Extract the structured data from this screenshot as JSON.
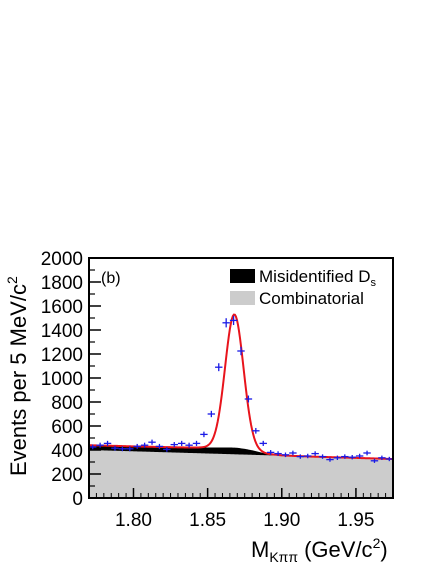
{
  "chart_data": {
    "type": "histogram-fit",
    "panel_label": "(b)",
    "xlabel": {
      "main": "M",
      "sub": "Kππ",
      "unit_pre": " (GeV/c",
      "unit_sup": "2",
      "unit_post": ")"
    },
    "ylabel": {
      "main": "Events per 5 MeV/c",
      "sup": "2"
    },
    "xlim": [
      1.77,
      1.975
    ],
    "ylim": [
      0,
      2000
    ],
    "xticks": [
      1.8,
      1.85,
      1.9,
      1.95
    ],
    "xtick_labels": [
      "1.80",
      "1.85",
      "1.90",
      "1.95"
    ],
    "yticks": [
      0,
      200,
      400,
      600,
      800,
      1000,
      1200,
      1400,
      1600,
      1800,
      2000
    ],
    "ytick_labels": [
      "0",
      "200",
      "400",
      "600",
      "800",
      "1000",
      "1200",
      "1400",
      "1600",
      "1800",
      "2000"
    ],
    "legend": {
      "placement": "top-right",
      "entries": [
        {
          "label_main": "Misidentified D",
          "label_sub": "s",
          "color": "#000000"
        },
        {
          "label_main": "Combinatorial",
          "label_sub": "",
          "color": "#cccccc"
        }
      ]
    },
    "colors": {
      "fit": "#e8141c",
      "data": "#1a1ae6",
      "misid": "#000000",
      "combinatorial": "#cccccc"
    },
    "bin_width": 0.005,
    "data_points": {
      "x": [
        1.7725,
        1.7775,
        1.7825,
        1.7875,
        1.7925,
        1.7975,
        1.8025,
        1.8075,
        1.8125,
        1.8175,
        1.8225,
        1.8275,
        1.8325,
        1.8375,
        1.8425,
        1.8475,
        1.8525,
        1.8575,
        1.8625,
        1.8675,
        1.8725,
        1.8775,
        1.8825,
        1.8875,
        1.8925,
        1.8975,
        1.9025,
        1.9075,
        1.9125,
        1.9175,
        1.9225,
        1.9275,
        1.9325,
        1.9375,
        1.9425,
        1.9475,
        1.9525,
        1.9575,
        1.9625,
        1.9675,
        1.9725
      ],
      "y": [
        425,
        440,
        455,
        415,
        410,
        410,
        430,
        440,
        465,
        430,
        405,
        445,
        455,
        440,
        455,
        530,
        700,
        1090,
        1460,
        1480,
        1225,
        825,
        560,
        455,
        380,
        370,
        360,
        375,
        345,
        350,
        370,
        345,
        320,
        335,
        345,
        340,
        350,
        375,
        310,
        335,
        325
      ]
    },
    "combinatorial_background": {
      "x": [
        1.77,
        1.975
      ],
      "y": [
        400,
        325
      ]
    },
    "misidentified_ds": {
      "x": [
        1.77,
        1.78,
        1.79,
        1.8,
        1.81,
        1.82,
        1.83,
        1.84,
        1.85,
        1.855,
        1.86,
        1.865,
        1.87,
        1.875,
        1.88,
        1.885,
        1.89,
        1.9,
        1.91,
        1.92,
        1.93,
        1.94,
        1.95,
        1.96,
        1.975
      ],
      "y": [
        40,
        40,
        41,
        41,
        42,
        43,
        44,
        46,
        50,
        52,
        54,
        56,
        55,
        48,
        38,
        25,
        12,
        3,
        1,
        0,
        0,
        0,
        0,
        0,
        0
      ]
    },
    "fit_signal": {
      "mean": 1.868,
      "sigma": 0.0062,
      "amplitude": 1110
    }
  }
}
